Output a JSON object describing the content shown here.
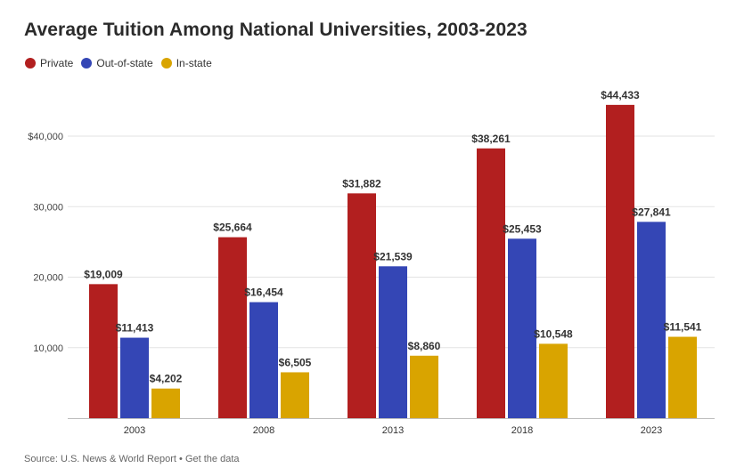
{
  "title": "Average Tuition Among National Universities, 2003-2023",
  "footer": {
    "source": "Source: U.S. News & World Report",
    "separator": "•",
    "link": "Get the data"
  },
  "chart_data": {
    "type": "bar",
    "title": "Average Tuition Among National Universities, 2003-2023",
    "xlabel": "",
    "ylabel": "",
    "categories": [
      "2003",
      "2008",
      "2013",
      "2018",
      "2023"
    ],
    "series": [
      {
        "name": "Private",
        "color": "#b21f1f",
        "values": [
          19009,
          25664,
          31882,
          38261,
          44433
        ],
        "labels": [
          "$19,009",
          "$25,664",
          "$31,882",
          "$38,261",
          "$44,433"
        ]
      },
      {
        "name": "Out-of-state",
        "color": "#3446b5",
        "values": [
          11413,
          16454,
          21539,
          25453,
          27841
        ],
        "labels": [
          "$11,413",
          "$16,454",
          "$21,539",
          "$25,453",
          "$27,841"
        ]
      },
      {
        "name": "In-state",
        "color": "#d9a400",
        "values": [
          4202,
          6505,
          8860,
          10548,
          11541
        ],
        "labels": [
          "$4,202",
          "$6,505",
          "$8,860",
          "$10,548",
          "$11,541"
        ]
      }
    ],
    "yticks": [
      10000,
      20000,
      30000,
      40000
    ],
    "ytick_labels": [
      "10,000",
      "20,000",
      "30,000",
      "$40,000"
    ],
    "ylim": [
      0,
      50000
    ],
    "grid": true,
    "legend_position": "top-left"
  }
}
